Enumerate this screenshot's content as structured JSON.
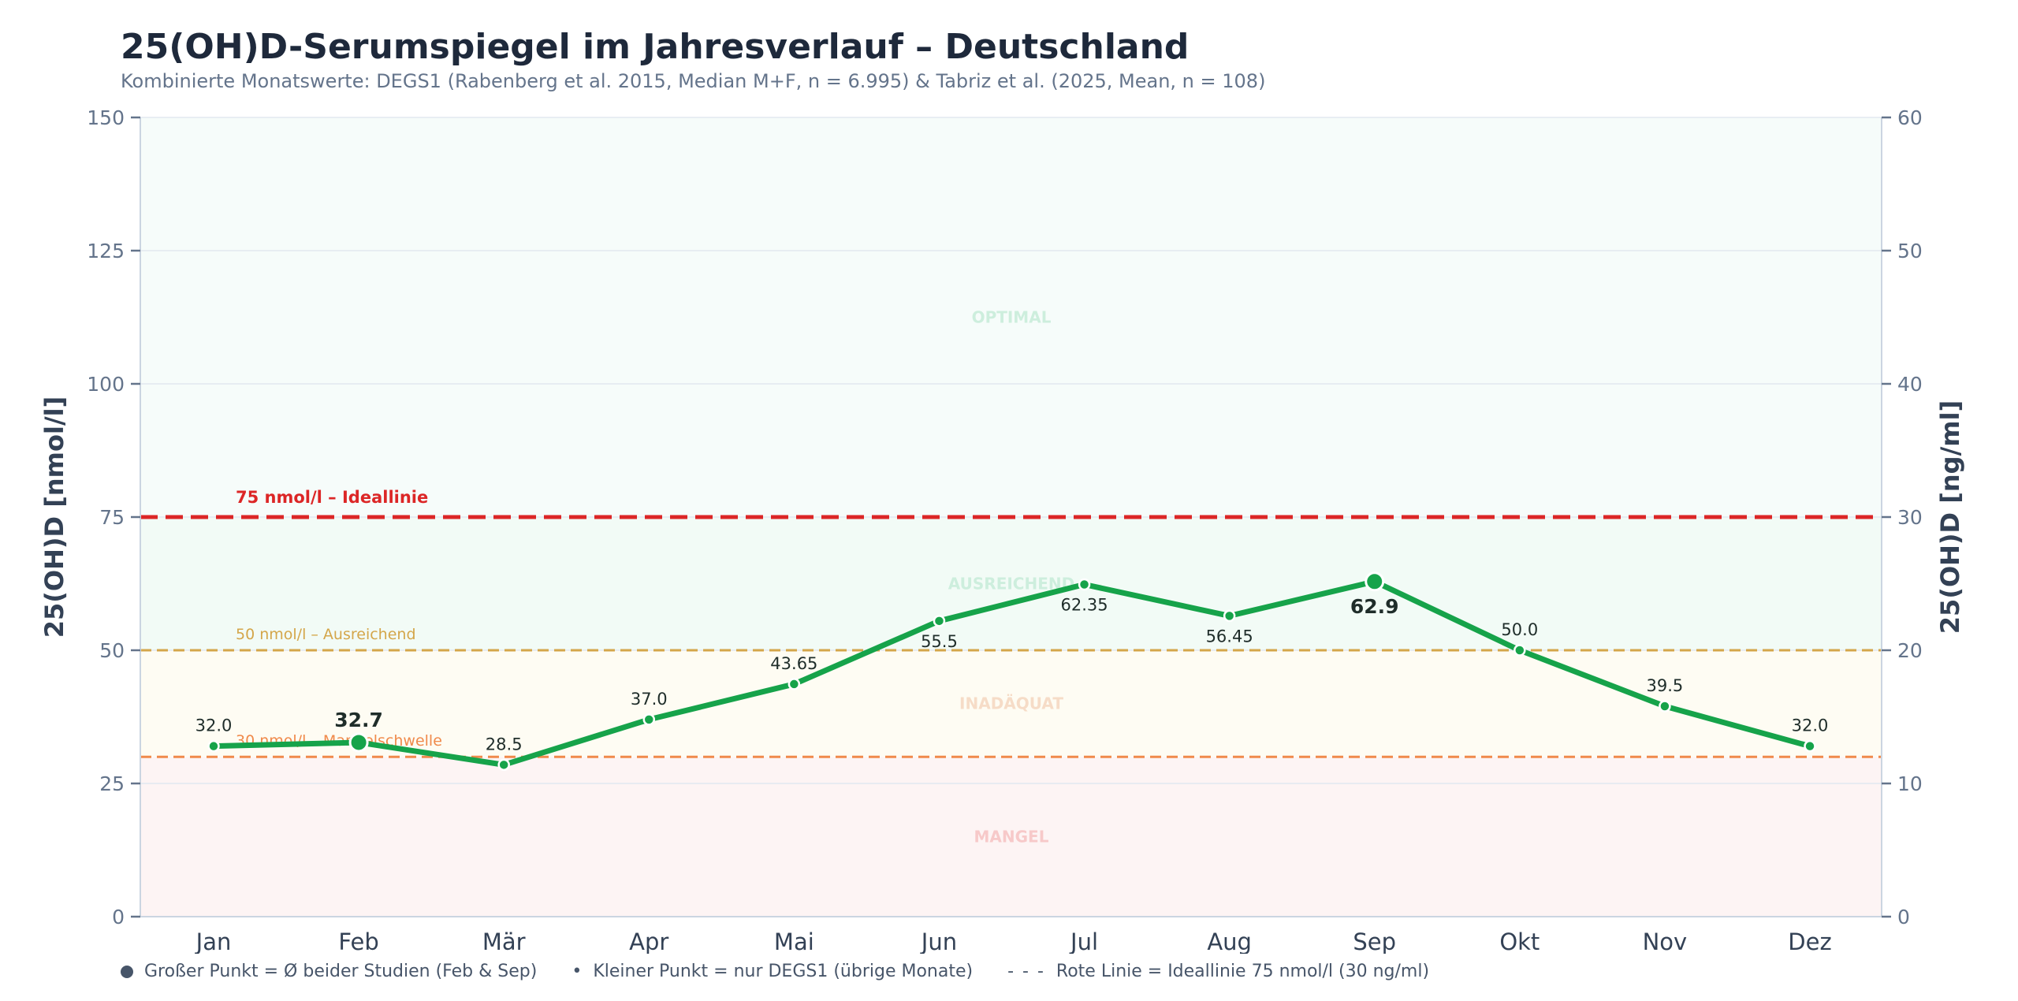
{
  "chart_data": {
    "type": "line",
    "title": "25(OH)D-Serumspiegel im Jahresverlauf – Deutschland",
    "subtitle": "Kombinierte Monatswerte: DEGS1 (Rabenberg et al. 2015, Median M+F, n = 6.995) & Tabriz et al. (2025, Mean, n = 108)",
    "xlabel": "",
    "ylabel": "25(OH)D  [nmol/l]",
    "ylabel_right": "25(OH)D  [ng/ml]",
    "ylim": [
      0,
      150
    ],
    "ylim_right": [
      0,
      60
    ],
    "yticks": [
      0,
      25,
      50,
      75,
      100,
      125,
      150
    ],
    "yticks_right": [
      0,
      10,
      20,
      30,
      40,
      50,
      60
    ],
    "grid": true,
    "categories": [
      "Jan",
      "Feb",
      "Mär",
      "Apr",
      "Mai",
      "Jun",
      "Jul",
      "Aug",
      "Sep",
      "Okt",
      "Nov",
      "Dez"
    ],
    "series": [
      {
        "name": "25(OH)D Serumspiegel",
        "color": "#16a34a",
        "values": [
          32.0,
          32.7,
          28.5,
          37.0,
          43.65,
          55.5,
          62.35,
          56.45,
          62.9,
          50.0,
          39.5,
          32.0
        ],
        "labels": [
          "32.0",
          "32.7",
          "28.5",
          "37.0",
          "43.65",
          "55.5",
          "62.35",
          "56.45",
          "62.9",
          "50.0",
          "39.5",
          "32.0"
        ],
        "label_position": [
          "above",
          "above",
          "above",
          "above",
          "above",
          "below",
          "below",
          "below",
          "below",
          "above",
          "above",
          "above"
        ],
        "large_points": [
          "Feb",
          "Sep"
        ]
      }
    ],
    "bands": [
      {
        "name": "MANGEL",
        "from": 0,
        "to": 30,
        "color": "#fdf4f4",
        "label_color": "#f7c9c9",
        "label_value": 15
      },
      {
        "name": "INADÄQUAT",
        "from": 30,
        "to": 50,
        "color": "#fefcf3",
        "label_color": "#f6dcc7",
        "label_value": 40
      },
      {
        "name": "AUSREICHEND",
        "from": 50,
        "to": 75,
        "color": "#f2fbf6",
        "label_color": "#cdeedd",
        "label_value": 62.5
      },
      {
        "name": "OPTIMAL",
        "from": 75,
        "to": 150,
        "color": "#f6fcfa",
        "label_color": "#cdeedd",
        "label_value": 112.5
      }
    ],
    "reference_lines": [
      {
        "value": 75,
        "label": "75 nmol/l – Ideallinie",
        "color": "#dc2626",
        "style": "dashed",
        "weight": "bold"
      },
      {
        "value": 50,
        "label": "50 nmol/l – Ausreichend",
        "color": "#d4a64a",
        "style": "dashed",
        "weight": "normal"
      },
      {
        "value": 30,
        "label": "30 nmol/l – Mangelschwelle",
        "color": "#f08a4b",
        "style": "dashed",
        "weight": "normal"
      }
    ]
  },
  "legend": {
    "items": [
      {
        "symbol": "big-dot",
        "text": "Großer Punkt = Ø beider Studien (Feb & Sep)"
      },
      {
        "symbol": "•",
        "text": "Kleiner Punkt = nur DEGS1 (übrige Monate)"
      },
      {
        "symbol": "- - -",
        "text": "Rote Linie = Ideallinie 75 nmol/l (30 ng/ml)"
      }
    ]
  }
}
